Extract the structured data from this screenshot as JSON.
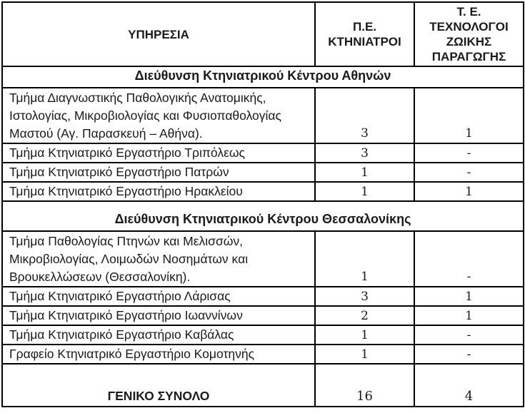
{
  "table": {
    "columns": [
      {
        "label": "ΥΠΗΡΕΣΙΑ"
      },
      {
        "label": "Π.Ε.\nΚΤΗΝΙΑΤΡΟΙ"
      },
      {
        "label": "Τ. Ε.\nΤΕΧΝΟΛΟΓΟΙ\nΖΩΙΚΗΣ\nΠΑΡΑΓΩΓΗΣ"
      }
    ],
    "sections": [
      {
        "title": "Διεύθυνση Κτηνιατρικού Κέντρου Αθηνών",
        "rows": [
          {
            "service": "Τμήμα Διαγνωστικής Παθολογικής Ανατομικής, Ιστολογίας, Μικροβιολογίας και Φυσιοπαθολογίας Μαστού (Αγ. Παρασκευή – Αθήνα).",
            "pe": "3",
            "te": "1",
            "tall": true
          },
          {
            "service": "Τμήμα Κτηνιατρικό Εργαστήριο Τριπόλεως",
            "pe": "3",
            "te": "-"
          },
          {
            "service": "Τμήμα Κτηνιατρικό Εργαστήριο Πατρών",
            "pe": "1",
            "te": "-"
          },
          {
            "service": "Τμήμα Κτηνιατρικό Εργαστήριο Ηρακλείου",
            "pe": "1",
            "te": "1"
          }
        ]
      },
      {
        "title": "Διεύθυνση Κτηνιατρικού Κέντρου Θεσσαλονίκης",
        "rows": [
          {
            "service": "Τμήμα Παθολογίας Πτηνών και Μελισσών, Μικροβιολογίας, Λοιμωδών Νοσημάτων και Βρουκελλώσεων (Θεσσαλονίκη).",
            "pe": "1",
            "te": "-",
            "tall": true
          },
          {
            "service": "Τμήμα Κτηνιατρικό Εργαστήριο Λάρισας",
            "pe": "3",
            "te": "1"
          },
          {
            "service": "Τμήμα Κτηνιατρικό Εργαστήριο Ιωαννίνων",
            "pe": "2",
            "te": "1"
          },
          {
            "service": "Τμήμα Κτηνιατρικό Εργαστήριο Καβάλας",
            "pe": "1",
            "te": "-"
          },
          {
            "service": "Γραφείο Κτηνιατρικό Εργαστήριο Κομοτηνής",
            "pe": "1",
            "te": "-"
          }
        ]
      }
    ],
    "total": {
      "label": "ΓΕΝΙΚΟ ΣΥΝΟΛΟ",
      "pe": "16",
      "te": "4"
    }
  }
}
